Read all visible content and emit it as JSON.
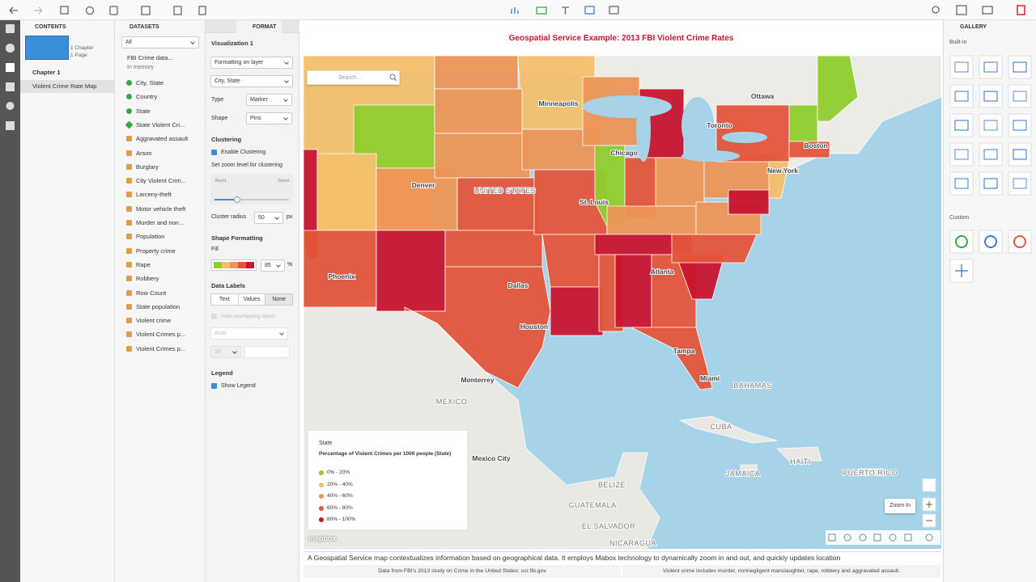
{
  "contents": {
    "title": "CONTENTS",
    "summary": [
      "1 Chapter",
      "1 Page"
    ],
    "chapter": "Chapter 1",
    "page": "Violent Crime Rate Map"
  },
  "datasets": {
    "title": "DATASETS",
    "filter": "All",
    "dataset": "FBI Crime data...",
    "status": "In memory",
    "fields": [
      "City, State",
      "Country",
      "State",
      "State Violent Cri...",
      "Aggravated assault",
      "Arson",
      "Burglary",
      "City Violent Crim...",
      "Larceny-theft",
      "Motor vehicle theft",
      "Murder and non...",
      "Population",
      "Property crime",
      "Rape",
      "Robbery",
      "Row Count",
      "State population",
      "Violent crime",
      "Violent Crimes p...",
      "Violent Crimes p..."
    ]
  },
  "format": {
    "tab": "FORMAT",
    "visualization": "Visualization 1",
    "layer_label": "Formatting on layer",
    "layer_value": "City, State",
    "type_label": "Type",
    "type_value": "Marker",
    "shape_label": "Shape",
    "shape_value": "Pins",
    "clustering": "Clustering",
    "enable_clustering": "Enable Clustering",
    "zoom_level": "Set zoom level for clustering",
    "zoom_min": "World",
    "zoom_max": "Street",
    "cluster_radius": "Cluster radius",
    "cluster_radius_value": "50",
    "cluster_radius_unit": "px",
    "shape_formatting": "Shape Formatting",
    "fill": "Fill",
    "opacity": "85",
    "opacity_unit": "%",
    "data_labels": "Data Labels",
    "label_options": [
      "Text",
      "Values",
      "None"
    ],
    "hide_overlapping": "Hide overlapping labels",
    "font": "Arial",
    "font_size": "10",
    "legend": "Legend",
    "show_legend": "Show Legend"
  },
  "canvas": {
    "title": "Geospatial Service Example: 2013 FBI Violent Crime Rates",
    "search": "Search...",
    "map_labels": [
      "Ottawa",
      "Minneapolis",
      "Toronto",
      "Boston",
      "Chicago",
      "New York",
      "Denver",
      "UNITED STATES",
      "St. Louis",
      "Phoenix",
      "Dallas",
      "Atlanta",
      "Houston",
      "Tampa",
      "Miami",
      "BAHAMAS",
      "Monterrey",
      "MEXICO",
      "CUBA",
      "Mexico City",
      "HAITI",
      "JAMAICA",
      "PUERTO RICO",
      "BELIZE",
      "GUATEMALA",
      "EL SALVADOR",
      "NICARAGUA"
    ],
    "legend": {
      "layer": "State",
      "title": "Percentage of Violent Crimes per 1000 people (State)",
      "items": [
        {
          "label": "0% - 20%",
          "color": "#8fce2e"
        },
        {
          "label": "20% - 40%",
          "color": "#f3c06c"
        },
        {
          "label": "40% - 60%",
          "color": "#ec9556"
        },
        {
          "label": "60% - 80%",
          "color": "#e4553b"
        },
        {
          "label": "80% - 100%",
          "color": "#c8142f"
        }
      ]
    },
    "attribution": "mapbox",
    "tooltip": "Zoom In",
    "description": "A Geospatial Service map contextualizes information based on geographical data. It employs Mabox technology to dynamically zoom in and out, and quickly updates location",
    "footer": [
      "Data from FBI's 2013 study on Crime in the United States: ucr.fbi.gov",
      "Violent crime includes murder, nonnegligent manslaughter, rape, robbery and aggravated assault."
    ]
  },
  "gallery": {
    "title": "GALLERY",
    "builtin": "Built-in",
    "custom": "Custom"
  }
}
